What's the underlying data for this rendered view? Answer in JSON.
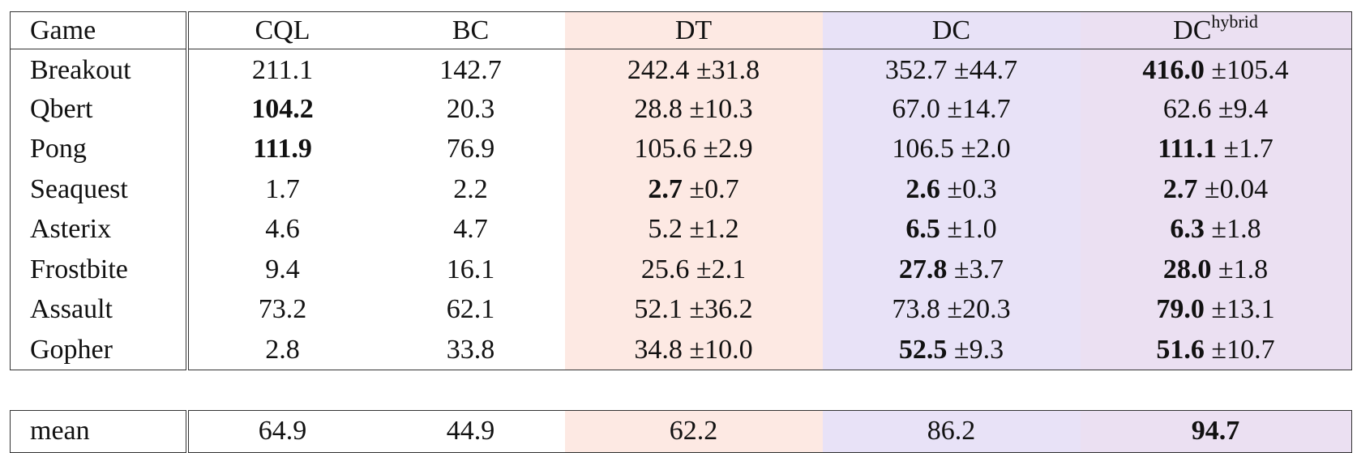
{
  "header": {
    "game": "Game",
    "cql": "CQL",
    "bc": "BC",
    "dt": "DT",
    "dc": "DC",
    "dch_base": "DC",
    "dch_sup": "hybrid"
  },
  "rows": [
    {
      "game": "Breakout",
      "cql": "211.1",
      "bc": "142.7",
      "dt": "242.4",
      "dt_sd": "±31.8",
      "dc": "352.7",
      "dc_sd": "±44.7",
      "dch": "416.0",
      "dch_sd": "±105.4"
    },
    {
      "game": "Qbert",
      "cql": "104.2",
      "bc": "20.3",
      "dt": "28.8",
      "dt_sd": "±10.3",
      "dc": "67.0",
      "dc_sd": "±14.7",
      "dch": "62.6",
      "dch_sd": "±9.4"
    },
    {
      "game": "Pong",
      "cql": "111.9",
      "bc": "76.9",
      "dt": "105.6",
      "dt_sd": "±2.9",
      "dc": "106.5",
      "dc_sd": "±2.0",
      "dch": "111.1",
      "dch_sd": "±1.7"
    },
    {
      "game": "Seaquest",
      "cql": "1.7",
      "bc": "2.2",
      "dt": "2.7",
      "dt_sd": "±0.7",
      "dc": "2.6",
      "dc_sd": "±0.3",
      "dch": "2.7",
      "dch_sd": "±0.04"
    },
    {
      "game": "Asterix",
      "cql": "4.6",
      "bc": "4.7",
      "dt": "5.2",
      "dt_sd": "±1.2",
      "dc": "6.5",
      "dc_sd": "±1.0",
      "dch": "6.3",
      "dch_sd": "±1.8"
    },
    {
      "game": "Frostbite",
      "cql": "9.4",
      "bc": "16.1",
      "dt": "25.6",
      "dt_sd": "±2.1",
      "dc": "27.8",
      "dc_sd": "±3.7",
      "dch": "28.0",
      "dch_sd": "±1.8"
    },
    {
      "game": "Assault",
      "cql": "73.2",
      "bc": "62.1",
      "dt": "52.1",
      "dt_sd": "±36.2",
      "dc": "73.8",
      "dc_sd": "±20.3",
      "dch": "79.0",
      "dch_sd": "±13.1"
    },
    {
      "game": "Gopher",
      "cql": "2.8",
      "bc": "33.8",
      "dt": "34.8",
      "dt_sd": "±10.0",
      "dc": "52.5",
      "dc_sd": "±9.3",
      "dch": "51.6",
      "dch_sd": "±10.7"
    }
  ],
  "mean": {
    "game": "mean",
    "cql": "64.9",
    "bc": "44.9",
    "dt": "62.2",
    "dc": "86.2",
    "dch": "94.7"
  },
  "bold_cells": {
    "cql": [
      1,
      2
    ],
    "dt": [
      3
    ],
    "dc": [
      3,
      4,
      5,
      7
    ],
    "dch": [
      0,
      2,
      3,
      4,
      5,
      6,
      7
    ],
    "mean": [
      "dch"
    ]
  },
  "colors": {
    "dt_bg": "#fde9e3",
    "dc_bg": "#e8e2f7",
    "dch_bg": "#ebe0f2"
  }
}
